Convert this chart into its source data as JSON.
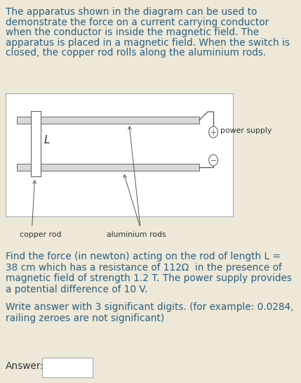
{
  "bg_color": "#ede8d8",
  "diagram_bg": "#ffffff",
  "text_color": "#2c6080",
  "dark_color": "#333333",
  "line_color": "#555555",
  "title_lines": [
    "The apparatus shown in the diagram can be used to",
    "demonstrate the force on a current carrying conductor",
    "when the conductor is inside the magnetic field. The",
    "apparatus is placed in a magnetic field. When the switch is",
    "closed, the copper rod rolls along the aluminium rods."
  ],
  "prob_line1": "Find the force (in newton) acting on the rod of length L =",
  "prob_line2": "38 cm which has a resistance of 112Ω  in the presence of",
  "prob_line3": "magnetic field of strength 1.2 T. The power supply provides",
  "prob_line4": "a potential difference of 10 V.",
  "hint_line1": "Write answer with 3 significant digits. (for example: 0.0284,",
  "hint_line2": "railing zeroes are not significant)",
  "answer_label": "Answer:",
  "font_size": 9.8,
  "small_font": 7.5,
  "diagram_label_font": 7.8
}
